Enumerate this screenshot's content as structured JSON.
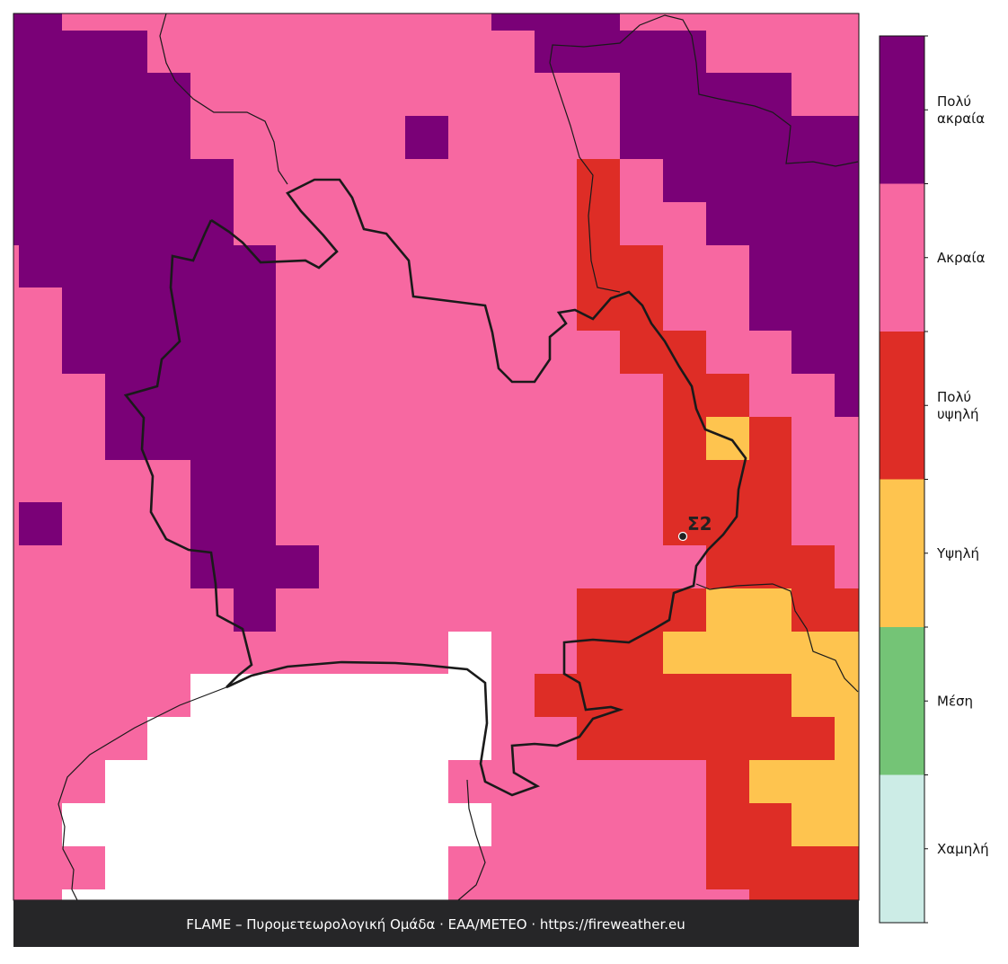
{
  "map": {
    "station_label": "Σ2",
    "footer": "FLAME – Πυρομετεωρολογική Ομάδα · ΕΑΑ/METEO · https://fireweather.eu",
    "legend": [
      {
        "lines": [
          "Πολύ",
          "ακραία"
        ],
        "color": "#7a0177"
      },
      {
        "lines": [
          "Ακραία"
        ],
        "color": "#f768a1"
      },
      {
        "lines": [
          "Πολύ",
          "υψηλή"
        ],
        "color": "#de2d26"
      },
      {
        "lines": [
          "Υψηλή"
        ],
        "color": "#fec44f"
      },
      {
        "lines": [
          "Μέση"
        ],
        "color": "#74c476"
      },
      {
        "lines": [
          "Χαμηλή"
        ],
        "color": "#ccece6"
      }
    ]
  }
}
